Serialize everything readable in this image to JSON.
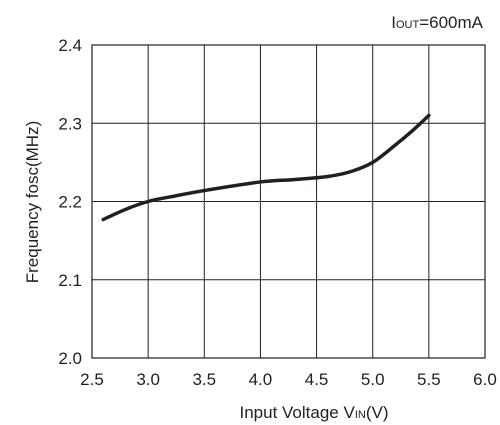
{
  "chart_data": {
    "type": "line",
    "title": "",
    "annotation": {
      "prefix": "I",
      "subscript": "OUT",
      "suffix": "=600mA"
    },
    "xlabel": {
      "prefix": "Input Voltage V",
      "subscript": "IN",
      "suffix": "(V)"
    },
    "ylabel": "Frequency fosc(MHz)",
    "xlim": [
      2.5,
      6.0
    ],
    "ylim": [
      2.0,
      2.4
    ],
    "xticks": [
      "2.5",
      "3.0",
      "3.5",
      "4.0",
      "4.5",
      "5.0",
      "5.5",
      "6.0"
    ],
    "yticks": [
      "2.0",
      "2.1",
      "2.2",
      "2.3",
      "2.4"
    ],
    "grid": true,
    "line_color": "#231f20",
    "grid_color": "#231f20",
    "series": [
      {
        "x": [
          2.6,
          2.8,
          3.0,
          3.2,
          3.5,
          4.0,
          4.3,
          4.6,
          4.8,
          5.0,
          5.2,
          5.35,
          5.5
        ],
        "y": [
          2.177,
          2.19,
          2.2,
          2.206,
          2.214,
          2.225,
          2.228,
          2.232,
          2.238,
          2.25,
          2.272,
          2.29,
          2.31
        ]
      }
    ]
  }
}
